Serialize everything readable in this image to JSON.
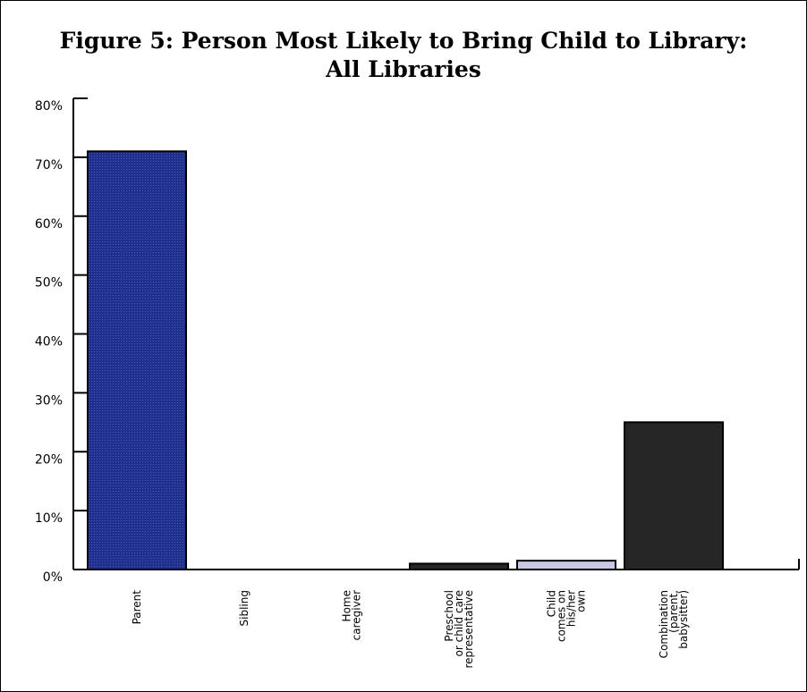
{
  "chart_data": {
    "type": "bar",
    "title": "Figure 5: Person Most Likely to Bring Child to Library:",
    "subtitle": "All Libraries",
    "categories": [
      [
        "Parent"
      ],
      [
        "Sibling"
      ],
      [
        "Home",
        "caregiver"
      ],
      [
        "Preschool",
        "or child care",
        "representative"
      ],
      [
        "Child",
        "comes on",
        "his/her",
        "own"
      ],
      [
        "Combination",
        "(parent,",
        "babysitter)"
      ]
    ],
    "values": [
      71,
      0,
      0,
      1,
      1.5,
      25
    ],
    "colors": [
      "#1f2f8c",
      "#1f2f8c",
      "#1f2f8c",
      "#262626",
      "#c8c8e6",
      "#262626"
    ],
    "ylim": [
      0,
      80
    ],
    "yticks": [
      0,
      10,
      20,
      30,
      40,
      50,
      60,
      70,
      80
    ],
    "ytick_labels": [
      "0%",
      "10%",
      "20%",
      "30%",
      "40%",
      "50%",
      "60%",
      "70%",
      "80%"
    ],
    "grid": false,
    "legend": "none"
  }
}
